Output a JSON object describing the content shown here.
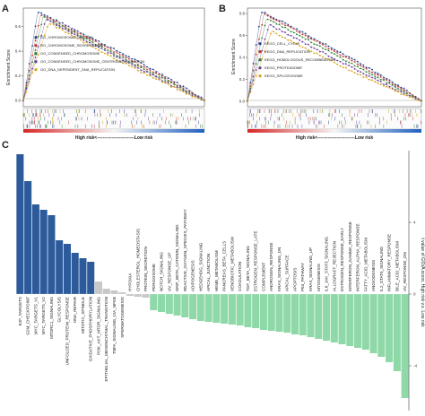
{
  "panels": {
    "a": {
      "letter": "A",
      "ylabel": "Enrichment Score",
      "y_ticks": [
        "0.6",
        "0.4",
        "0.2",
        "0.0"
      ],
      "bottom_label": "High risk<-------------------------Low risk"
    },
    "b": {
      "letter": "B",
      "ylabel": "Enrichment Score",
      "y_ticks": [
        "0.8",
        "0.6",
        "0.4",
        "0.2",
        "0.0"
      ],
      "bottom_label": "High risk<-------------------------Low risk"
    },
    "c": {
      "letter": "C",
      "ylabel": "t value of GSVA score, High risk v.s. Low risk",
      "y_ticks": [
        "4",
        "0",
        "-4"
      ]
    }
  },
  "chart_data": [
    {
      "type": "line",
      "panel": "A",
      "ylabel": "Enrichment Score",
      "ylim": [
        -0.05,
        0.75
      ],
      "legend_placement": "center",
      "series": [
        {
          "name": "GO_CHROMOSOMAL_REGION",
          "color": "#1f3f8f",
          "peak": 0.72
        },
        {
          "name": "GO_CHROMOSOME_SEGREGATION",
          "color": "#c0392b",
          "peak": 0.7
        },
        {
          "name": "GO_CONDENSED_CHROMOSOME",
          "color": "#2e7d32",
          "peak": 0.68
        },
        {
          "name": "GO_CONDENSED_CHROMOSOME_CENTROMERIC_REGION",
          "color": "#6a3d9a",
          "peak": 0.66
        },
        {
          "name": "GO_DNA_DEPENDENT_DNA_REPLICATION",
          "color": "#d4a017",
          "peak": 0.63
        }
      ]
    },
    {
      "type": "line",
      "panel": "B",
      "ylabel": "Enrichment Score",
      "ylim": [
        -0.05,
        0.85
      ],
      "legend_placement": "center",
      "series": [
        {
          "name": "KEGG_CELL_CYCLE",
          "color": "#1f3f8f",
          "peak": 0.82
        },
        {
          "name": "KEGG_DNA_REPLICATION",
          "color": "#c0392b",
          "peak": 0.8
        },
        {
          "name": "KEGG_HOMOLOGOUS_RECOMBINATION",
          "color": "#2e7d32",
          "peak": 0.76
        },
        {
          "name": "KEGG_PROTEASOME",
          "color": "#6a3d9a",
          "peak": 0.7
        },
        {
          "name": "KEGG_SPLICEOSOME",
          "color": "#d4a017",
          "peak": 0.64
        }
      ]
    },
    {
      "type": "bar",
      "panel": "C",
      "ylabel": "t value of GSVA score, High risk v.s. Low risk",
      "ylim": [
        -6.5,
        8
      ],
      "colors": {
        "positive": "#2c5a9a",
        "neutral": "#c8c8c8",
        "negative": "#8fd9a8"
      },
      "categories": [
        "E2F_TARGETS",
        "G2M_CHECKPOINT",
        "MYC_TARGETS_V1",
        "MYC_TARGETS_V2",
        "MTORC1_SIGNALING",
        "GLYCOLYSIS",
        "UNFOLDED_PROTEIN_RESPONSE",
        "DNA_REPAIR",
        "MITOTIC_SPINDLE",
        "OXIDATIVE_PHOSPHORYLATION",
        "PI3K_AKT_MTOR_SIGNALING",
        "EPITHELIAL_MESENCHYMAL_TRANSITION",
        "TNFA_SIGNALING_VIA_NFKB",
        "SPERMATOGENESIS",
        "HYPOXIA",
        "CHOLESTEROL_HOMEOSTASIS",
        "PROTEIN_SECRETION",
        "PEROXISOME",
        "NOTCH_SIGNALING",
        "UV_RESPONSE_UP",
        "WNT_BETA_CATENIN_SIGNALING",
        "REACTIVE_OXYGEN_SPECIES_PATHWAY",
        "ADIPOGENESIS",
        "HEDGEHOG_SIGNALING",
        "APICAL_JUNCTION",
        "HEME_METABOLISM",
        "PANCREAS_BETA_CELLS",
        "XENOBIOTIC_METABOLISM",
        "COAGULATION",
        "TGF_BETA_SIGNALING",
        "ESTROGEN_RESPONSE_LATE",
        "COMPLEMENT",
        "ANDROGEN_RESPONSE",
        "KRAS_SIGNALING_DN",
        "APICAL_SURFACE",
        "APOPTOSIS",
        "P53_PATHWAY",
        "KRAS_SIGNALING_UP",
        "MYOGENESIS",
        "IL6_JAK_STAT3_SIGNALING",
        "ALLOGRAFT_REJECTION",
        "ESTROGEN_RESPONSE_EARLY",
        "INTERFERON_GAMMA_RESPONSE",
        "INTERFERON_ALPHA_RESPONSE",
        "FATTY_ACID_METABOLISM",
        "ANGIOGENESIS",
        "IL2_STAT5_SIGNALING",
        "INFLAMMATORY_RESPONSE",
        "BILE_ACID_METABOLISM",
        "UV_RESPONSE_DN"
      ],
      "values": [
        7.8,
        6.3,
        5.0,
        4.7,
        4.4,
        3.0,
        2.8,
        2.3,
        2.0,
        1.8,
        0.7,
        0.3,
        0.2,
        0.1,
        -0.1,
        -0.15,
        -0.2,
        -0.9,
        -1.0,
        -1.1,
        -1.2,
        -1.3,
        -1.4,
        -1.5,
        -1.55,
        -1.6,
        -1.65,
        -1.7,
        -1.75,
        -1.85,
        -1.9,
        -2.0,
        -2.05,
        -2.1,
        -2.15,
        -2.25,
        -2.3,
        -2.4,
        -2.5,
        -2.6,
        -2.7,
        -2.8,
        -2.9,
        -3.0,
        -3.1,
        -3.3,
        -3.5,
        -3.8,
        -4.3,
        -5.8
      ]
    }
  ]
}
